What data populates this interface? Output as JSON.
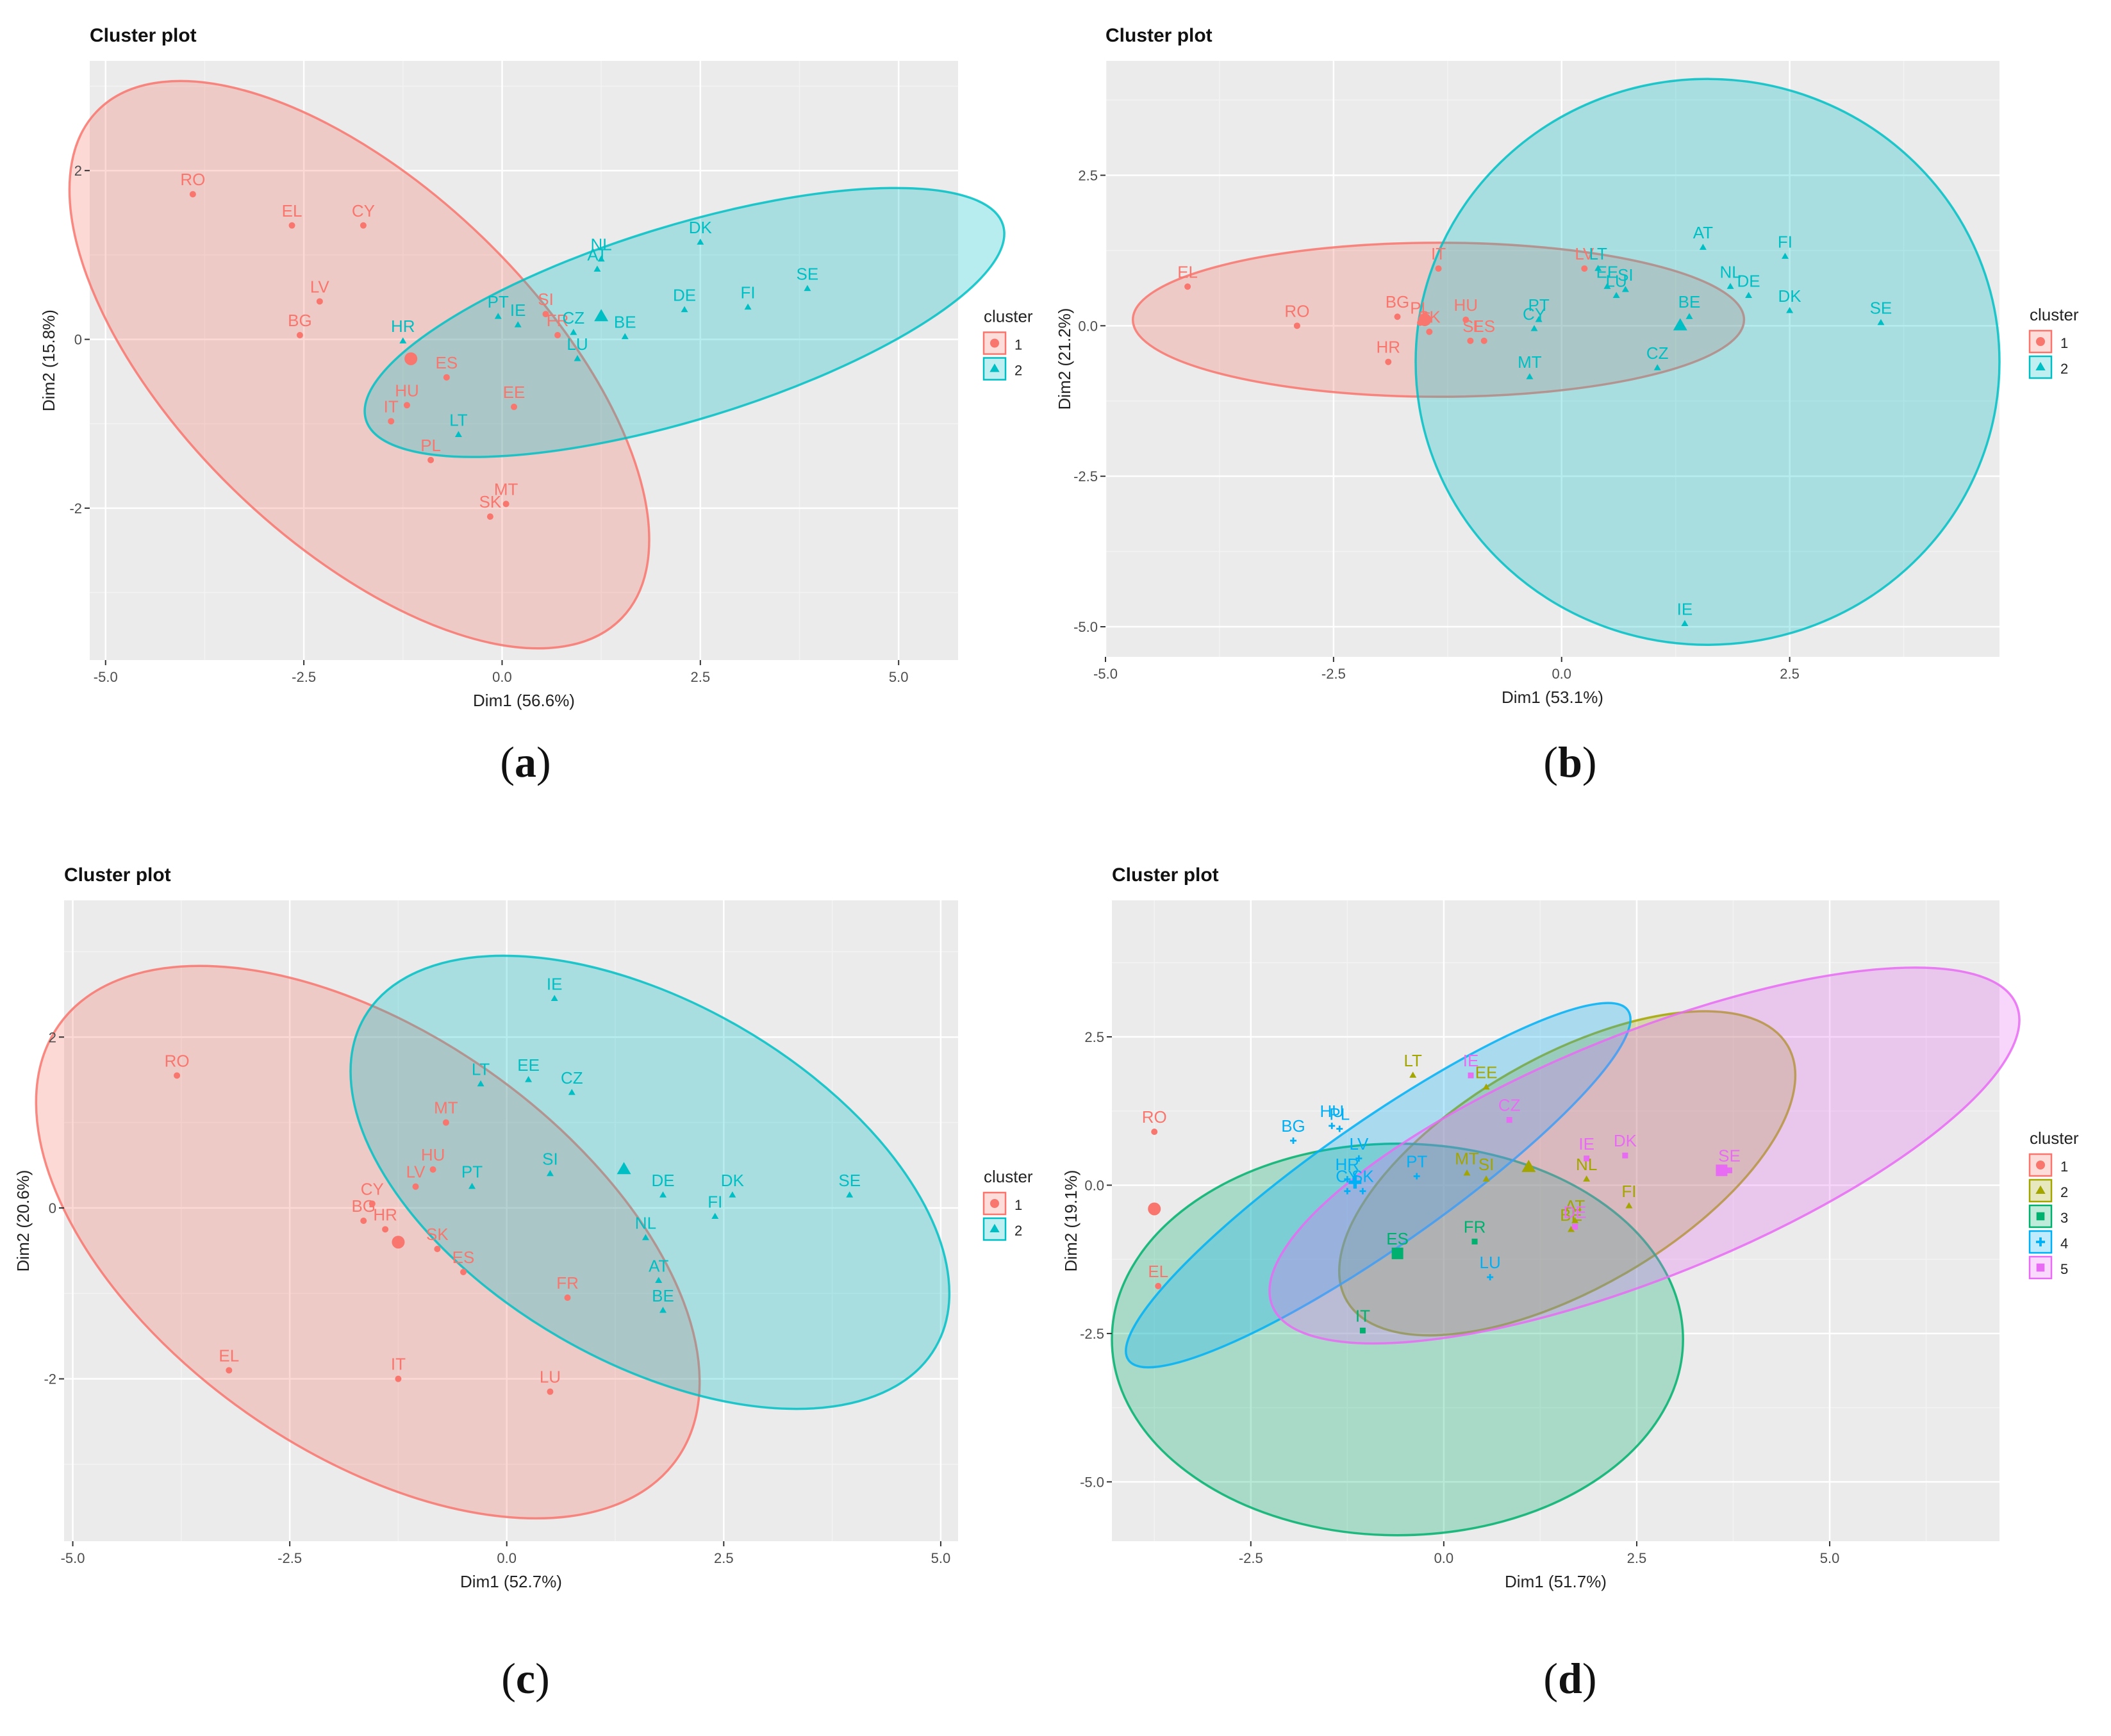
{
  "colors": {
    "panel_bg": "#ebebeb",
    "grid_major": "#ffffff",
    "grid_minor": "#f3f3f3",
    "axis_text": "#4d4d4d",
    "title_text": "#111111",
    "cluster_2": [
      "#f8766d",
      "#00bfc4"
    ],
    "cluster_5": [
      "#f8766d",
      "#a3a500",
      "#00b06f",
      "#00b0f6",
      "#e76bf3"
    ]
  },
  "chart_data": [
    {
      "type": "scatter",
      "title": "Cluster plot",
      "caption_paren_open": "(",
      "caption_letter": "a",
      "caption_paren_close": ")",
      "xlabel": "Dim1 (56.6%)",
      "ylabel": "Dim2 (15.8%)",
      "xlim": [
        -5.2,
        5.75
      ],
      "ylim": [
        -3.8,
        3.3
      ],
      "xticks": [
        -5.0,
        -2.5,
        0.0,
        2.5,
        5.0
      ],
      "xtick_labels": [
        "-5.0",
        "-2.5",
        "0.0",
        "2.5",
        "5.0"
      ],
      "yticks": [
        -2,
        0,
        2
      ],
      "ytick_labels": [
        "-2",
        "0",
        "2"
      ],
      "legend_title": "cluster",
      "legend_labels": [
        "1",
        "2"
      ],
      "clusters": [
        {
          "name": "1",
          "color_index": 0,
          "shape": "circle",
          "center": [
            -1.15,
            -0.23
          ],
          "ellipse": {
            "cx": -1.8,
            "cy": -0.3,
            "rx": 4.6,
            "ry": 2.1,
            "angle": -44
          },
          "points": [
            {
              "label": "RO",
              "x": -3.9,
              "y": 1.72
            },
            {
              "label": "EL",
              "x": -2.65,
              "y": 1.35
            },
            {
              "label": "CY",
              "x": -1.75,
              "y": 1.35
            },
            {
              "label": "LV",
              "x": -2.3,
              "y": 0.45
            },
            {
              "label": "BG",
              "x": -2.55,
              "y": 0.05
            },
            {
              "label": "HU",
              "x": -1.2,
              "y": -0.78
            },
            {
              "label": "IT",
              "x": -1.4,
              "y": -0.97
            },
            {
              "label": "ES",
              "x": -0.7,
              "y": -0.45
            },
            {
              "label": "EE",
              "x": 0.15,
              "y": -0.8
            },
            {
              "label": "PL",
              "x": -0.9,
              "y": -1.43
            },
            {
              "label": "SK",
              "x": -0.15,
              "y": -2.1
            },
            {
              "label": "MT",
              "x": 0.05,
              "y": -1.95
            },
            {
              "label": "SI",
              "x": 0.55,
              "y": 0.3
            },
            {
              "label": "FR",
              "x": 0.7,
              "y": 0.05
            }
          ]
        },
        {
          "name": "2",
          "color_index": 1,
          "shape": "triangle",
          "center": [
            1.25,
            0.27
          ],
          "ellipse": {
            "cx": 2.3,
            "cy": 0.2,
            "rx": 4.2,
            "ry": 1.15,
            "angle": 17
          },
          "points": [
            {
              "label": "HR",
              "x": -1.25,
              "y": -0.02
            },
            {
              "label": "PT",
              "x": -0.05,
              "y": 0.27
            },
            {
              "label": "IE",
              "x": 0.2,
              "y": 0.17
            },
            {
              "label": "CZ",
              "x": 0.9,
              "y": 0.08
            },
            {
              "label": "LU",
              "x": 0.95,
              "y": -0.23
            },
            {
              "label": "LT",
              "x": -0.55,
              "y": -1.13
            },
            {
              "label": "BE",
              "x": 1.55,
              "y": 0.03
            },
            {
              "label": "AT",
              "x": 1.2,
              "y": 0.83
            },
            {
              "label": "NL",
              "x": 1.25,
              "y": 0.95
            },
            {
              "label": "DK",
              "x": 2.5,
              "y": 1.15
            },
            {
              "label": "DE",
              "x": 2.3,
              "y": 0.35
            },
            {
              "label": "FI",
              "x": 3.1,
              "y": 0.38
            },
            {
              "label": "SE",
              "x": 3.85,
              "y": 0.6
            }
          ]
        }
      ]
    },
    {
      "type": "scatter",
      "title": "Cluster plot",
      "caption_paren_open": "(",
      "caption_letter": "b",
      "caption_paren_close": ")",
      "xlabel": "Dim1 (53.1%)",
      "ylabel": "Dim2 (21.2%)",
      "xlim": [
        -5.0,
        4.8
      ],
      "ylim": [
        -5.5,
        4.4
      ],
      "xticks": [
        -5.0,
        -2.5,
        0.0,
        2.5
      ],
      "xtick_labels": [
        "-5.0",
        "-2.5",
        "0.0",
        "2.5"
      ],
      "yticks": [
        -5.0,
        -2.5,
        0.0,
        2.5
      ],
      "ytick_labels": [
        "-5.0",
        "-2.5",
        "0.0",
        "2.5"
      ],
      "legend_title": "cluster",
      "legend_labels": [
        "1",
        "2"
      ],
      "clusters": [
        {
          "name": "1",
          "color_index": 0,
          "shape": "circle",
          "center": [
            -1.5,
            0.1
          ],
          "ellipse": {
            "cx": -1.35,
            "cy": 0.1,
            "rx": 3.35,
            "ry": 1.28,
            "angle": 0
          },
          "points": [
            {
              "label": "EL",
              "x": -4.1,
              "y": 0.65
            },
            {
              "label": "RO",
              "x": -2.9,
              "y": 0.0
            },
            {
              "label": "BG",
              "x": -1.8,
              "y": 0.15
            },
            {
              "label": "HR",
              "x": -1.9,
              "y": -0.6
            },
            {
              "label": "PL",
              "x": -1.55,
              "y": 0.05
            },
            {
              "label": "SK",
              "x": -1.45,
              "y": -0.1
            },
            {
              "label": "IT",
              "x": -1.35,
              "y": 0.95
            },
            {
              "label": "HU",
              "x": -1.05,
              "y": 0.1
            },
            {
              "label": "SI",
              "x": -1.0,
              "y": -0.25
            },
            {
              "label": "ES",
              "x": -0.85,
              "y": -0.25
            },
            {
              "label": "LV",
              "x": 0.25,
              "y": 0.95
            }
          ]
        },
        {
          "name": "2",
          "color_index": 1,
          "shape": "triangle",
          "center": [
            1.3,
            0.0
          ],
          "ellipse": {
            "cx": 1.6,
            "cy": -0.6,
            "rx": 3.2,
            "ry": 4.7,
            "angle": 0
          },
          "points": [
            {
              "label": "PT",
              "x": -0.25,
              "y": 0.1
            },
            {
              "label": "CY",
              "x": -0.3,
              "y": -0.05
            },
            {
              "label": "MT",
              "x": -0.35,
              "y": -0.85
            },
            {
              "label": "LT",
              "x": 0.4,
              "y": 0.95
            },
            {
              "label": "EE",
              "x": 0.5,
              "y": 0.65
            },
            {
              "label": "LU",
              "x": 0.6,
              "y": 0.5
            },
            {
              "label": "SI",
              "x": 0.7,
              "y": 0.6
            },
            {
              "label": "BE",
              "x": 1.4,
              "y": 0.15
            },
            {
              "label": "CZ",
              "x": 1.05,
              "y": -0.7
            },
            {
              "label": "AT",
              "x": 1.55,
              "y": 1.3
            },
            {
              "label": "NL",
              "x": 1.85,
              "y": 0.65
            },
            {
              "label": "DE",
              "x": 2.05,
              "y": 0.5
            },
            {
              "label": "FI",
              "x": 2.45,
              "y": 1.15
            },
            {
              "label": "DK",
              "x": 2.5,
              "y": 0.25
            },
            {
              "label": "SE",
              "x": 3.5,
              "y": 0.05
            },
            {
              "label": "IE",
              "x": 1.35,
              "y": -4.95
            }
          ]
        }
      ]
    },
    {
      "type": "scatter",
      "title": "Cluster plot",
      "caption_paren_open": "(",
      "caption_letter": "c",
      "caption_paren_close": ")",
      "xlabel": "Dim1 (52.7%)",
      "ylabel": "Dim2 (20.6%)",
      "xlim": [
        -5.1,
        5.2
      ],
      "ylim": [
        -3.9,
        3.6
      ],
      "xticks": [
        -5.0,
        -2.5,
        0.0,
        2.5,
        5.0
      ],
      "xtick_labels": [
        "-5.0",
        "-2.5",
        "0.0",
        "2.5",
        "5.0"
      ],
      "yticks": [
        -2,
        0,
        2
      ],
      "ytick_labels": [
        "-2",
        "0",
        "2"
      ],
      "legend_title": "cluster",
      "legend_labels": [
        "1",
        "2"
      ],
      "clusters": [
        {
          "name": "1",
          "color_index": 0,
          "shape": "circle",
          "center": [
            -1.25,
            -0.4
          ],
          "ellipse": {
            "cx": -1.6,
            "cy": -0.4,
            "rx": 4.35,
            "ry": 2.45,
            "angle": -35
          },
          "points": [
            {
              "label": "RO",
              "x": -3.8,
              "y": 1.55
            },
            {
              "label": "EL",
              "x": -3.2,
              "y": -1.9
            },
            {
              "label": "IT",
              "x": -1.25,
              "y": -2.0
            },
            {
              "label": "MT",
              "x": -0.7,
              "y": 1.0
            },
            {
              "label": "HU",
              "x": -0.85,
              "y": 0.45
            },
            {
              "label": "LV",
              "x": -1.05,
              "y": 0.25
            },
            {
              "label": "CY",
              "x": -1.55,
              "y": 0.05
            },
            {
              "label": "BG",
              "x": -1.65,
              "y": -0.15
            },
            {
              "label": "HR",
              "x": -1.4,
              "y": -0.25
            },
            {
              "label": "SK",
              "x": -0.8,
              "y": -0.48
            },
            {
              "label": "ES",
              "x": -0.5,
              "y": -0.75
            },
            {
              "label": "FR",
              "x": 0.7,
              "y": -1.05
            },
            {
              "label": "LU",
              "x": 0.5,
              "y": -2.15
            }
          ]
        },
        {
          "name": "2",
          "color_index": 1,
          "shape": "triangle",
          "center": [
            1.35,
            0.45
          ],
          "ellipse": {
            "cx": 1.65,
            "cy": 0.3,
            "rx": 3.8,
            "ry": 2.1,
            "angle": -30
          },
          "points": [
            {
              "label": "IE",
              "x": 0.55,
              "y": 2.45
            },
            {
              "label": "LT",
              "x": -0.3,
              "y": 1.45
            },
            {
              "label": "EE",
              "x": 0.25,
              "y": 1.5
            },
            {
              "label": "CZ",
              "x": 0.75,
              "y": 1.35
            },
            {
              "label": "PT",
              "x": -0.4,
              "y": 0.25
            },
            {
              "label": "SI",
              "x": 0.5,
              "y": 0.4
            },
            {
              "label": "DE",
              "x": 1.8,
              "y": 0.15
            },
            {
              "label": "DK",
              "x": 2.6,
              "y": 0.15
            },
            {
              "label": "FI",
              "x": 2.4,
              "y": -0.1
            },
            {
              "label": "NL",
              "x": 1.6,
              "y": -0.35
            },
            {
              "label": "AT",
              "x": 1.75,
              "y": -0.85
            },
            {
              "label": "BE",
              "x": 1.8,
              "y": -1.2
            },
            {
              "label": "SE",
              "x": 3.95,
              "y": 0.15
            }
          ]
        }
      ]
    },
    {
      "type": "scatter",
      "title": "Cluster plot",
      "caption_paren_open": "(",
      "caption_letter": "d",
      "caption_paren_close": ")",
      "xlabel": "Dim1 (51.7%)",
      "ylabel": "Dim2 (19.1%)",
      "xlim": [
        -4.3,
        7.2
      ],
      "ylim": [
        -6.0,
        4.8
      ],
      "xticks": [
        -2.5,
        0.0,
        2.5,
        5.0
      ],
      "xtick_labels": [
        "-2.5",
        "0.0",
        "2.5",
        "5.0"
      ],
      "yticks": [
        -5.0,
        -2.5,
        0.0,
        2.5
      ],
      "ytick_labels": [
        "-5.0",
        "-2.5",
        "0.0",
        "2.5"
      ],
      "legend_title": "cluster",
      "legend_labels": [
        "1",
        "2",
        "3",
        "4",
        "5"
      ],
      "clusters": [
        {
          "name": "1",
          "color_index": 0,
          "shape": "circle",
          "center": [
            -3.75,
            -0.4
          ],
          "ellipse": null,
          "points": [
            {
              "label": "RO",
              "x": -3.75,
              "y": 0.9
            },
            {
              "label": "EL",
              "x": -3.7,
              "y": -1.7
            }
          ]
        },
        {
          "name": "2",
          "color_index": 1,
          "shape": "triangle",
          "center": [
            1.1,
            0.3
          ],
          "ellipse": {
            "cx": 1.6,
            "cy": 0.2,
            "rx": 3.3,
            "ry": 1.95,
            "angle": 30
          },
          "points": [
            {
              "label": "LT",
              "x": -0.4,
              "y": 1.85
            },
            {
              "label": "EE",
              "x": 0.55,
              "y": 1.65
            },
            {
              "label": "MT",
              "x": 0.3,
              "y": 0.2
            },
            {
              "label": "SI",
              "x": 0.55,
              "y": 0.1
            },
            {
              "label": "NL",
              "x": 1.85,
              "y": 0.1
            },
            {
              "label": "FI",
              "x": 2.4,
              "y": -0.35
            },
            {
              "label": "AT",
              "x": 1.7,
              "y": -0.6
            },
            {
              "label": "BE",
              "x": 1.65,
              "y": -0.75
            }
          ]
        },
        {
          "name": "3",
          "color_index": 2,
          "shape": "square",
          "center": [
            -0.6,
            -1.15
          ],
          "ellipse": {
            "cx": -0.6,
            "cy": -2.6,
            "rx": 3.7,
            "ry": 3.3,
            "angle": 0
          },
          "points": [
            {
              "label": "ES",
              "x": -0.6,
              "y": -1.15
            },
            {
              "label": "FR",
              "x": 0.4,
              "y": -0.95
            },
            {
              "label": "IT",
              "x": -1.05,
              "y": -2.45
            }
          ]
        },
        {
          "name": "4",
          "color_index": 3,
          "shape": "plus",
          "center": [
            -1.15,
            0.05
          ],
          "ellipse": {
            "cx": -0.85,
            "cy": 0.0,
            "rx": 3.95,
            "ry": 1.05,
            "angle": 35
          },
          "points": [
            {
              "label": "BG",
              "x": -1.95,
              "y": 0.75
            },
            {
              "label": "HU",
              "x": -1.45,
              "y": 1.0
            },
            {
              "label": "PL",
              "x": -1.35,
              "y": 0.95
            },
            {
              "label": "LV",
              "x": -1.1,
              "y": 0.45
            },
            {
              "label": "HR",
              "x": -1.25,
              "y": 0.1
            },
            {
              "label": "CY",
              "x": -1.25,
              "y": -0.1
            },
            {
              "label": "SK",
              "x": -1.05,
              "y": -0.1
            },
            {
              "label": "PT",
              "x": -0.35,
              "y": 0.15
            },
            {
              "label": "LU",
              "x": 0.6,
              "y": -1.55
            }
          ]
        },
        {
          "name": "5",
          "color_index": 4,
          "shape": "square",
          "center": [
            3.6,
            0.25
          ],
          "ellipse": {
            "cx": 2.6,
            "cy": 0.5,
            "rx": 5.2,
            "ry": 2.05,
            "angle": 22
          },
          "points": [
            {
              "label": "IE",
              "x": 0.35,
              "y": 1.85
            },
            {
              "label": "CZ",
              "x": 0.85,
              "y": 1.1
            },
            {
              "label": "IE",
              "x": 1.85,
              "y": 0.45
            },
            {
              "label": "DK",
              "x": 2.35,
              "y": 0.5
            },
            {
              "label": "SE",
              "x": 3.7,
              "y": 0.25
            },
            {
              "label": "DE",
              "x": 1.7,
              "y": -0.7
            }
          ]
        }
      ]
    }
  ]
}
